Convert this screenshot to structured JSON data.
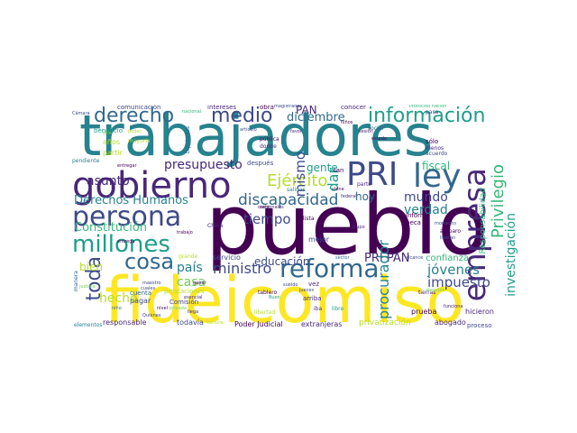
{
  "colors": {
    "dark_purple": "#440154",
    "purple": "#482878",
    "indigo": "#3e4a89",
    "blue": "#31688e",
    "teal": "#26828e",
    "green_teal": "#1f9e89",
    "green": "#35b779",
    "light_green": "#6ece58",
    "lime": "#b5de2b",
    "yellow": "#fde725"
  },
  "words": {
    "pueblo": "pueblo",
    "trabajadores": "trabajadores",
    "fideicomiso": "fideicomiso",
    "gobierno": "gobierno",
    "persona": "persona",
    "PRI": "PRI",
    "ley": "ley",
    "empresa": "empresa",
    "millones": "millones",
    "reforma": "reforma",
    "informacion": "información",
    "medio": "medio",
    "derecho": "derecho",
    "cosa": "cosa",
    "Ejercito": "Ejército",
    "toda": "toda",
    "Privilegio": "Privilegio",
    "discapacidad": "discapacidad",
    "Derechos_Humanos": "Derechos Humanos",
    "presupuesto": "presupuesto",
    "Constitucion": "Constitución",
    "diciembre": "diciembre",
    "ministro": "ministro",
    "educacion": "educación",
    "jovenes": "jóvenes",
    "PRI_PAN": "PRI PAN",
    "impuesto": "impuesto",
    "procurador": "procurador",
    "investigacion": "investigación",
    "mismo": "mismo",
    "tiempo": "tiempo",
    "asunto": "asunto",
    "pais": "país",
    "hecho": "hecho",
    "casa": "casa",
    "gente": "gente",
    "hoy": "hoy",
    "mundo": "mundo",
    "verdad": "verdad",
    "fiscal": "fiscal",
    "Responsabilidad": "Responsabilidad",
    "PAN": "PAN",
    "bien": "bien",
    "dar": "dar",
    "Poder_Judicial": "Poder Judicial",
    "privatizacion": "privatización",
    "abogado": "abogado",
    "responsable": "responsable",
    "todavia": "todavía",
    "extranjeras": "extranjeras",
    "proceso": "proceso",
    "elementos": "elementos",
    "servicio": "servicio",
    "mejor": "mejor",
    "confianza": "confianza",
    "prueba": "prueba",
    "hicieron": "hicieron",
    "comunicacion": "comunicación",
    "intereses": "intereses",
    "obra": "obra",
    "magistrados": "magistrados",
    "conocer": "conocer",
    "Protocolo_nacion": "Protocolo nación",
    "Camara": "Cámara",
    "sesion": "sesión",
    "nacional": "nacional",
    "articulo": "artículo",
    "despues": "después",
    "salinas": "salinas",
    "beneficio": "beneficio",
    "anos": "años",
    "partir": "partir",
    "pendiente": "pendiente",
    "mayoria": "mayoría",
    "Diputados": "Diputados",
    "publica": "pública",
    "donde": "donde",
    "tan": "tan",
    "parte": "parte",
    "informe": "informe",
    "beca": "beca",
    "lista": "lista",
    "entrega": "entrega",
    "Comision": "Comisión",
    "prestaciones": "prestaciones",
    "pagar": "pagar",
    "cuenta": "cuenta",
    "justicia": "justicia",
    "nino": "niño",
    "arriba": "arriba",
    "libre": "libre",
    "iba": "iba",
    "sector": "sector",
    "vez": "vez",
    "tierras": "tierras",
    "grande": "grande",
    "privada": "privada",
    "sueldo": "sueldo",
    "alcance": "alcance",
    "cuales": "cuales",
    "ganar": "ganar",
    "nacionales": "nacionales",
    "pasa": "pasa",
    "menos": "menos",
    "acuerdo": "acuerdo",
    "solo": "sólo",
    "social": "social",
    "favor": "favor",
    "entregar": "entregar",
    "China": "China",
    "trabajo": "trabajo",
    "tablero": "tablero",
    "Quienes": "Quiénes",
    "nivel": "nivel",
    "libertad": "libertad",
    "tortura": "tortura",
    "grupo": "grupo",
    "estado": "estado",
    "maestro": "maestro",
    "funciona": "funciona",
    "atencion": "atención",
    "amparo": "amparo",
    "liberan": "liberan",
    "momento": "momento",
    "viene": "viene",
    "federal": "federal",
    "corte": "corte",
    "llega": "llega",
    "esencial": "esencial",
    "manera": "manera",
    "silla": "silla",
    "poder": "poder",
    "jueces": "jueces",
    "Buen": "Buen",
    "ninos": "niños"
  }
}
